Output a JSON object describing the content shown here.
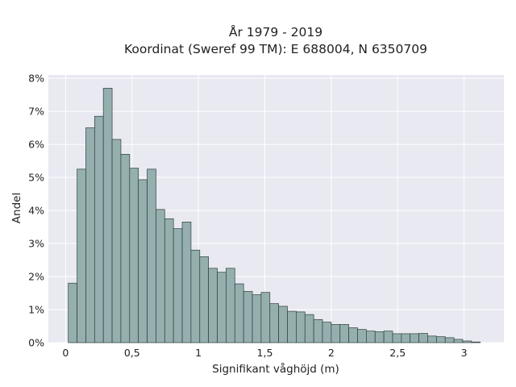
{
  "chart_data": {
    "type": "bar",
    "title_lines": [
      "År 1979 - 2019",
      "Koordinat (Sweref 99 TM): E 688004, N 6350709"
    ],
    "xlabel": "Signifikant våghöjd (m)",
    "ylabel": "Andel",
    "xlim": [
      -0.13,
      3.3
    ],
    "ylim": [
      0,
      8.1
    ],
    "bin_width": 0.066,
    "x_ticks": [
      0,
      0.5,
      1,
      1.5,
      2,
      2.5,
      3
    ],
    "x_tick_labels": [
      "0",
      "0,5",
      "1",
      "1,5",
      "2",
      "2,5",
      "3"
    ],
    "y_ticks": [
      0,
      1,
      2,
      3,
      4,
      5,
      6,
      7,
      8
    ],
    "y_tick_labels": [
      "0%",
      "1%",
      "2%",
      "3%",
      "4%",
      "5%",
      "6%",
      "7%",
      "8%"
    ],
    "bin_starts": [
      0.02,
      0.086,
      0.152,
      0.218,
      0.284,
      0.35,
      0.416,
      0.482,
      0.548,
      0.614,
      0.68,
      0.746,
      0.812,
      0.878,
      0.944,
      1.01,
      1.076,
      1.142,
      1.208,
      1.274,
      1.34,
      1.406,
      1.472,
      1.538,
      1.604,
      1.67,
      1.736,
      1.802,
      1.868,
      1.934,
      2.0,
      2.066,
      2.132,
      2.198,
      2.264,
      2.33,
      2.396,
      2.462,
      2.528,
      2.594,
      2.66,
      2.726,
      2.792,
      2.858,
      2.924,
      2.99,
      3.056
    ],
    "values": [
      1.8,
      5.25,
      6.5,
      6.85,
      7.7,
      6.15,
      5.7,
      5.28,
      4.93,
      5.25,
      4.03,
      3.75,
      3.45,
      3.65,
      2.8,
      2.6,
      2.25,
      2.13,
      2.25,
      1.78,
      1.55,
      1.45,
      1.52,
      1.18,
      1.1,
      0.95,
      0.93,
      0.85,
      0.7,
      0.62,
      0.55,
      0.55,
      0.45,
      0.4,
      0.35,
      0.33,
      0.35,
      0.27,
      0.27,
      0.27,
      0.28,
      0.2,
      0.18,
      0.15,
      0.1,
      0.05,
      0.02
    ],
    "grid": true,
    "colors": {
      "bar_fill": "#95afae",
      "bar_stroke": "#2f3f3e",
      "plot_background": "#e8e9f1",
      "grid": "#ffffff"
    }
  }
}
